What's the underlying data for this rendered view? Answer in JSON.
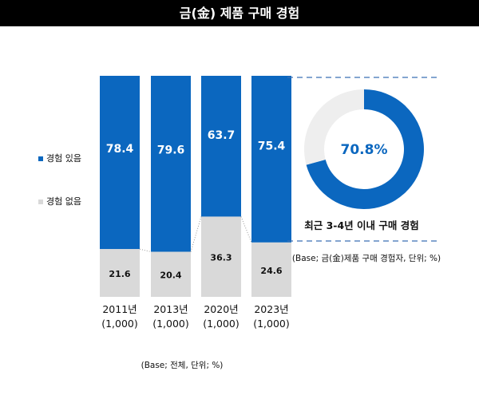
{
  "title": "금(金) 제품 구매 경험",
  "chart_data": [
    {
      "type": "bar",
      "stacked": true,
      "categories": [
        "2011년\n(1,000)",
        "2013년\n(1,000)",
        "2020년\n(1,000)",
        "2023년\n(1,000)"
      ],
      "category_lines": [
        [
          "2011년",
          "(1,000)"
        ],
        [
          "2013년",
          "(1,000)"
        ],
        [
          "2020년",
          "(1,000)"
        ],
        [
          "2023년",
          "(1,000)"
        ]
      ],
      "series": [
        {
          "name": "경험 있음",
          "values": [
            78.4,
            79.6,
            63.7,
            75.4
          ],
          "color": "#0b67bf"
        },
        {
          "name": "경험 없음",
          "values": [
            21.6,
            20.4,
            36.3,
            24.6
          ],
          "color": "#d9d9d9"
        }
      ],
      "legend_position": "left",
      "ylim": [
        0,
        100
      ],
      "base_note": "(Base; 전체, 단위; %)"
    },
    {
      "type": "pie",
      "donut": true,
      "values": [
        70.8,
        29.2
      ],
      "colors": [
        "#0b67bf",
        "#eeeeee"
      ],
      "center_label": "70.8%",
      "caption": "최근 3-4년 이내 구매 경험",
      "base_note": "(Base; 금(金)제품 구매 경험자, 단위; %)"
    }
  ]
}
